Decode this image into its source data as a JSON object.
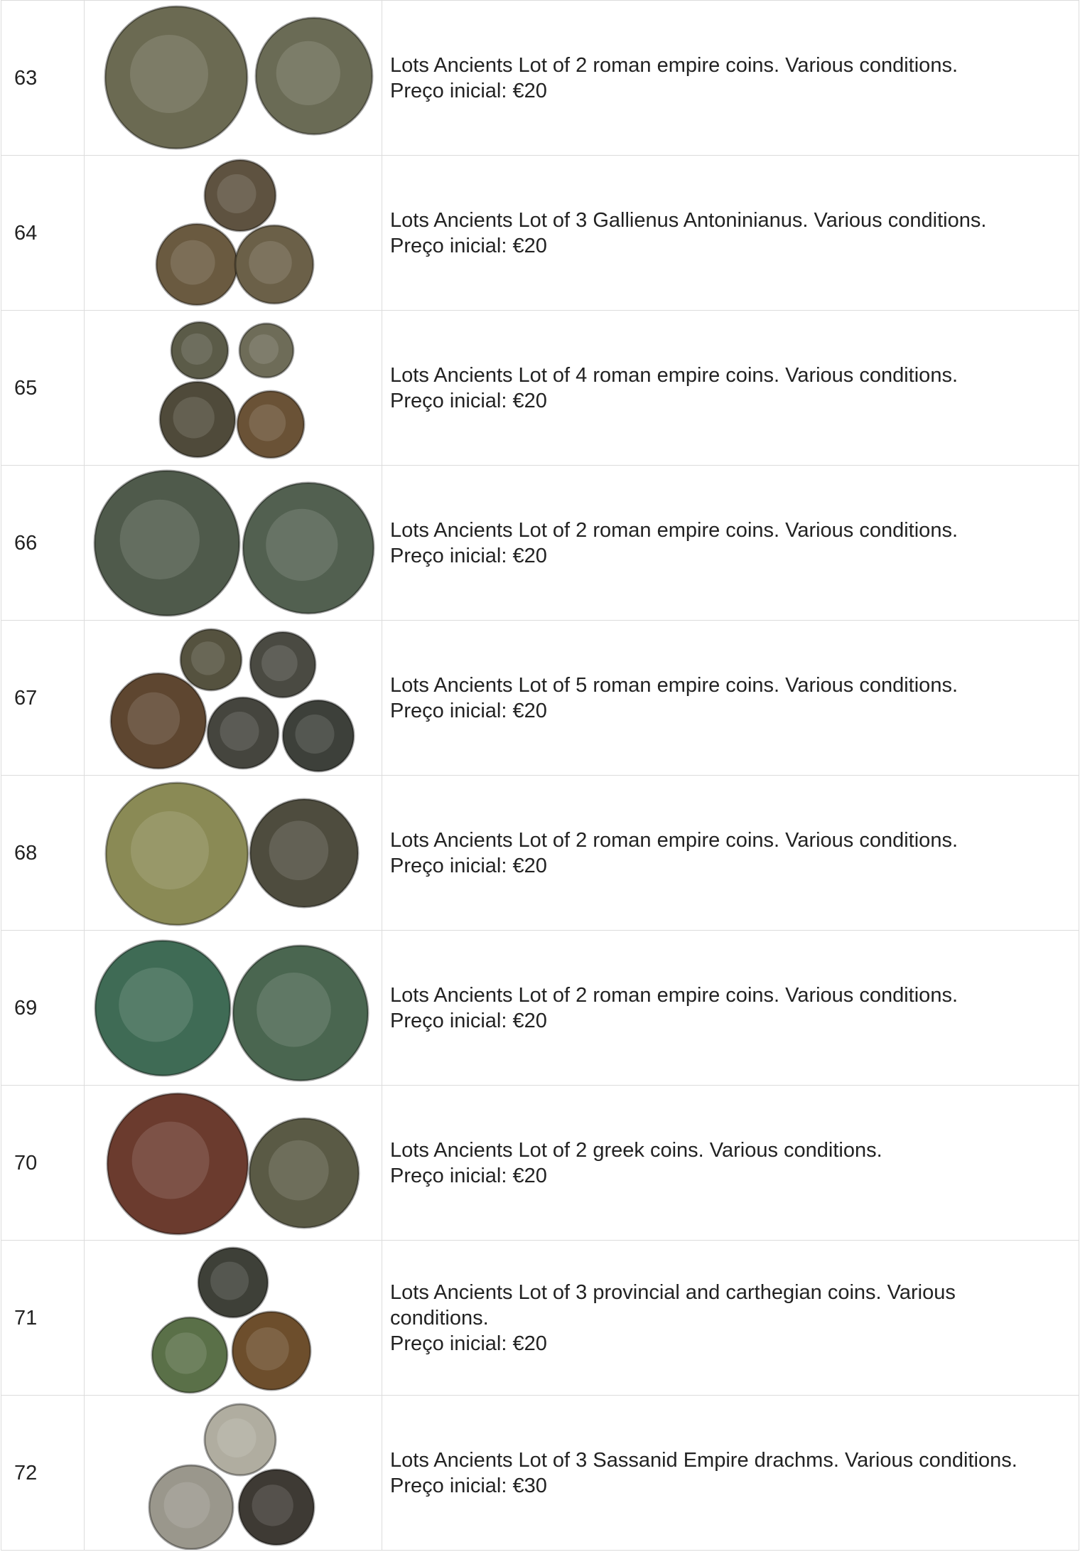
{
  "table": {
    "rows": [
      {
        "lot": "63",
        "description": "Lots Ancients Lot of 2 roman empire coins. Various conditions.",
        "price": "Preço inicial: €20"
      },
      {
        "lot": "64",
        "description": "Lots Ancients Lot of 3 Gallienus Antoninianus. Various conditions.",
        "price": "Preço inicial: €20"
      },
      {
        "lot": "65",
        "description": "Lots Ancients Lot of 4 roman empire coins. Various conditions.",
        "price": "Preço inicial: €20"
      },
      {
        "lot": "66",
        "description": "Lots Ancients Lot of 2 roman empire coins. Various conditions.",
        "price": "Preço inicial: €20"
      },
      {
        "lot": "67",
        "description": "Lots Ancients Lot of 5 roman empire coins. Various conditions.",
        "price": "Preço inicial: €20"
      },
      {
        "lot": "68",
        "description": "Lots Ancients Lot of 2 roman empire coins. Various conditions.",
        "price": "Preço inicial: €20"
      },
      {
        "lot": "69",
        "description": "Lots Ancients Lot of 2 roman empire coins. Various conditions.",
        "price": "Preço inicial: €20"
      },
      {
        "lot": "70",
        "description": "Lots Ancients Lot of 2 greek coins. Various conditions.",
        "price": "Preço inicial: €20"
      },
      {
        "lot": "71",
        "description": "Lots Ancients Lot of 3 provincial and carthegian coins. Various conditions.",
        "price": "Preço inicial: €20"
      },
      {
        "lot": "72",
        "description": "Lots Ancients Lot of 3 Sassanid Empire drachms. Various conditions.",
        "price": "Preço inicial: €30"
      }
    ]
  }
}
